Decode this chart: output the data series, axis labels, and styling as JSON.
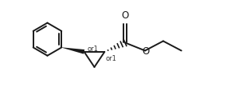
{
  "bg_color": "#ffffff",
  "line_color": "#1a1a1a",
  "line_width": 1.4,
  "figsize": [
    2.9,
    1.24
  ],
  "dpi": 100,
  "or1_fontsize": 6.0,
  "or1_color": "#333333",
  "xlim": [
    0,
    10
  ],
  "ylim": [
    0,
    4.3
  ],
  "bx": 2.0,
  "by": 2.6,
  "br": 0.72
}
